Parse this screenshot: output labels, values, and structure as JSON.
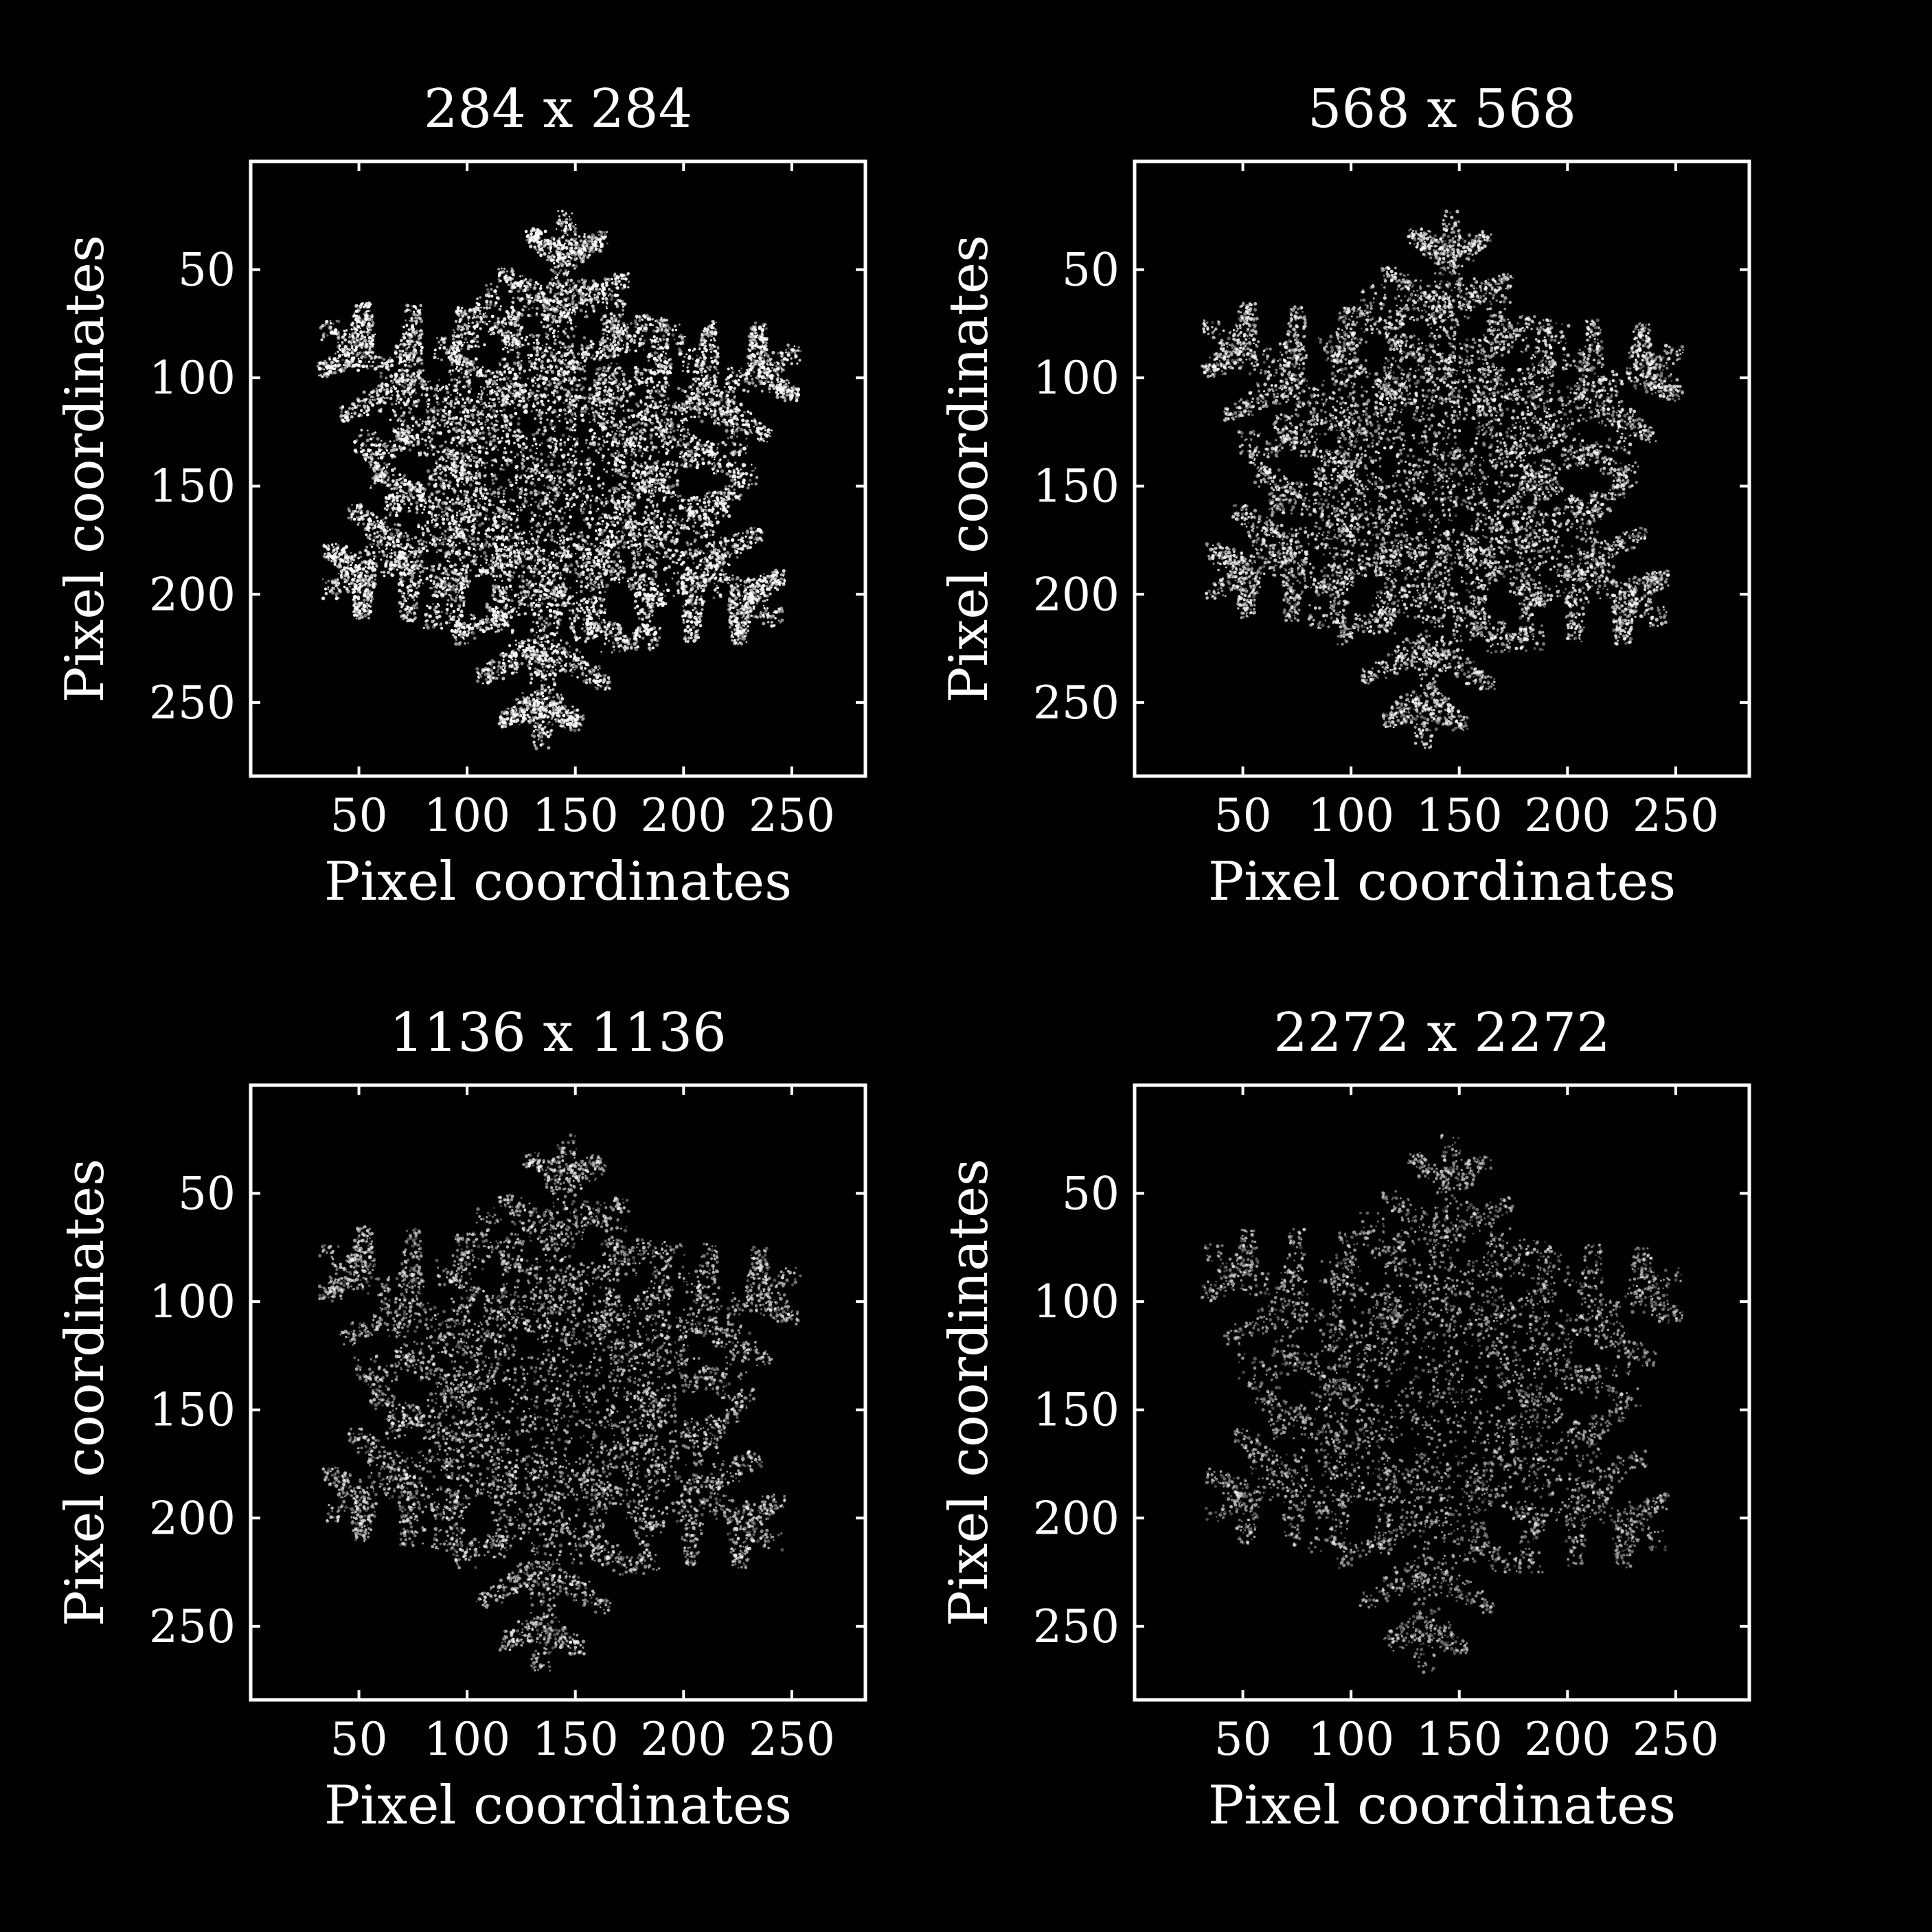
{
  "colors": {
    "background": "#000000",
    "foreground": "#ffffff"
  },
  "axes": {
    "xlabel": "Pixel coordinates",
    "ylabel": "Pixel coordinates",
    "x_ticks": [
      "50",
      "100",
      "150",
      "200",
      "250"
    ],
    "y_ticks": [
      "50",
      "100",
      "150",
      "200",
      "250"
    ],
    "range": [
      0,
      284
    ]
  },
  "panels": [
    {
      "title": "284 x 284",
      "density": 1.0
    },
    {
      "title": "568 x 568",
      "density": 0.72
    },
    {
      "title": "1136 x 1136",
      "density": 0.5
    },
    {
      "title": "2272 x 2272",
      "density": 0.34
    }
  ]
}
